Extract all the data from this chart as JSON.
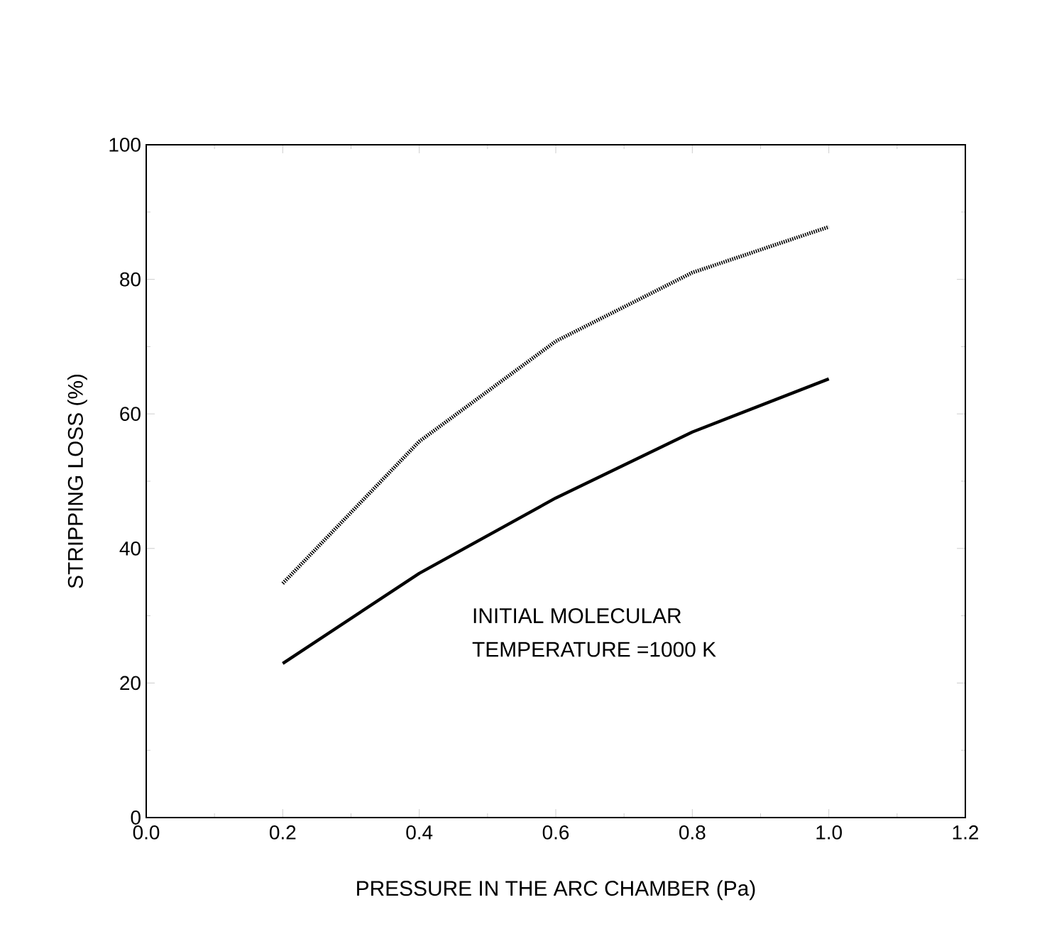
{
  "chart_data": {
    "type": "line",
    "xlabel": "PRESSURE IN THE ARC CHAMBER (Pa)",
    "ylabel": "STRIPPING  LOSS (%)",
    "x": [
      0.2,
      0.4,
      0.6,
      0.8,
      1.0
    ],
    "series": [
      {
        "color": "#000000",
        "line_style": "dotted",
        "values": [
          34.8,
          55.9,
          70.8,
          81,
          87.8
        ]
      },
      {
        "color": "#000000",
        "line_style": "solid",
        "values": [
          22.9,
          36.3,
          47.5,
          57.3,
          65.2
        ]
      }
    ],
    "xlim": [
      0,
      1.2
    ],
    "ylim": [
      0,
      100
    ],
    "xticks": [
      {
        "value": 0,
        "label": "0.0"
      },
      {
        "value": 0.2,
        "label": "0.2"
      },
      {
        "value": 0.4,
        "label": "0.4"
      },
      {
        "value": 0.6,
        "label": "0.6"
      },
      {
        "value": 0.8,
        "label": "0.8"
      },
      {
        "value": 1.0,
        "label": "1.0"
      },
      {
        "value": 1.2,
        "label": "1.2"
      }
    ],
    "yticks": [
      0,
      20,
      40,
      60,
      80,
      100
    ],
    "annotations": [
      "INITIAL  MOLECULAR",
      "TEMPERATURE  =1000  K"
    ],
    "grid": false,
    "marker": "none"
  }
}
